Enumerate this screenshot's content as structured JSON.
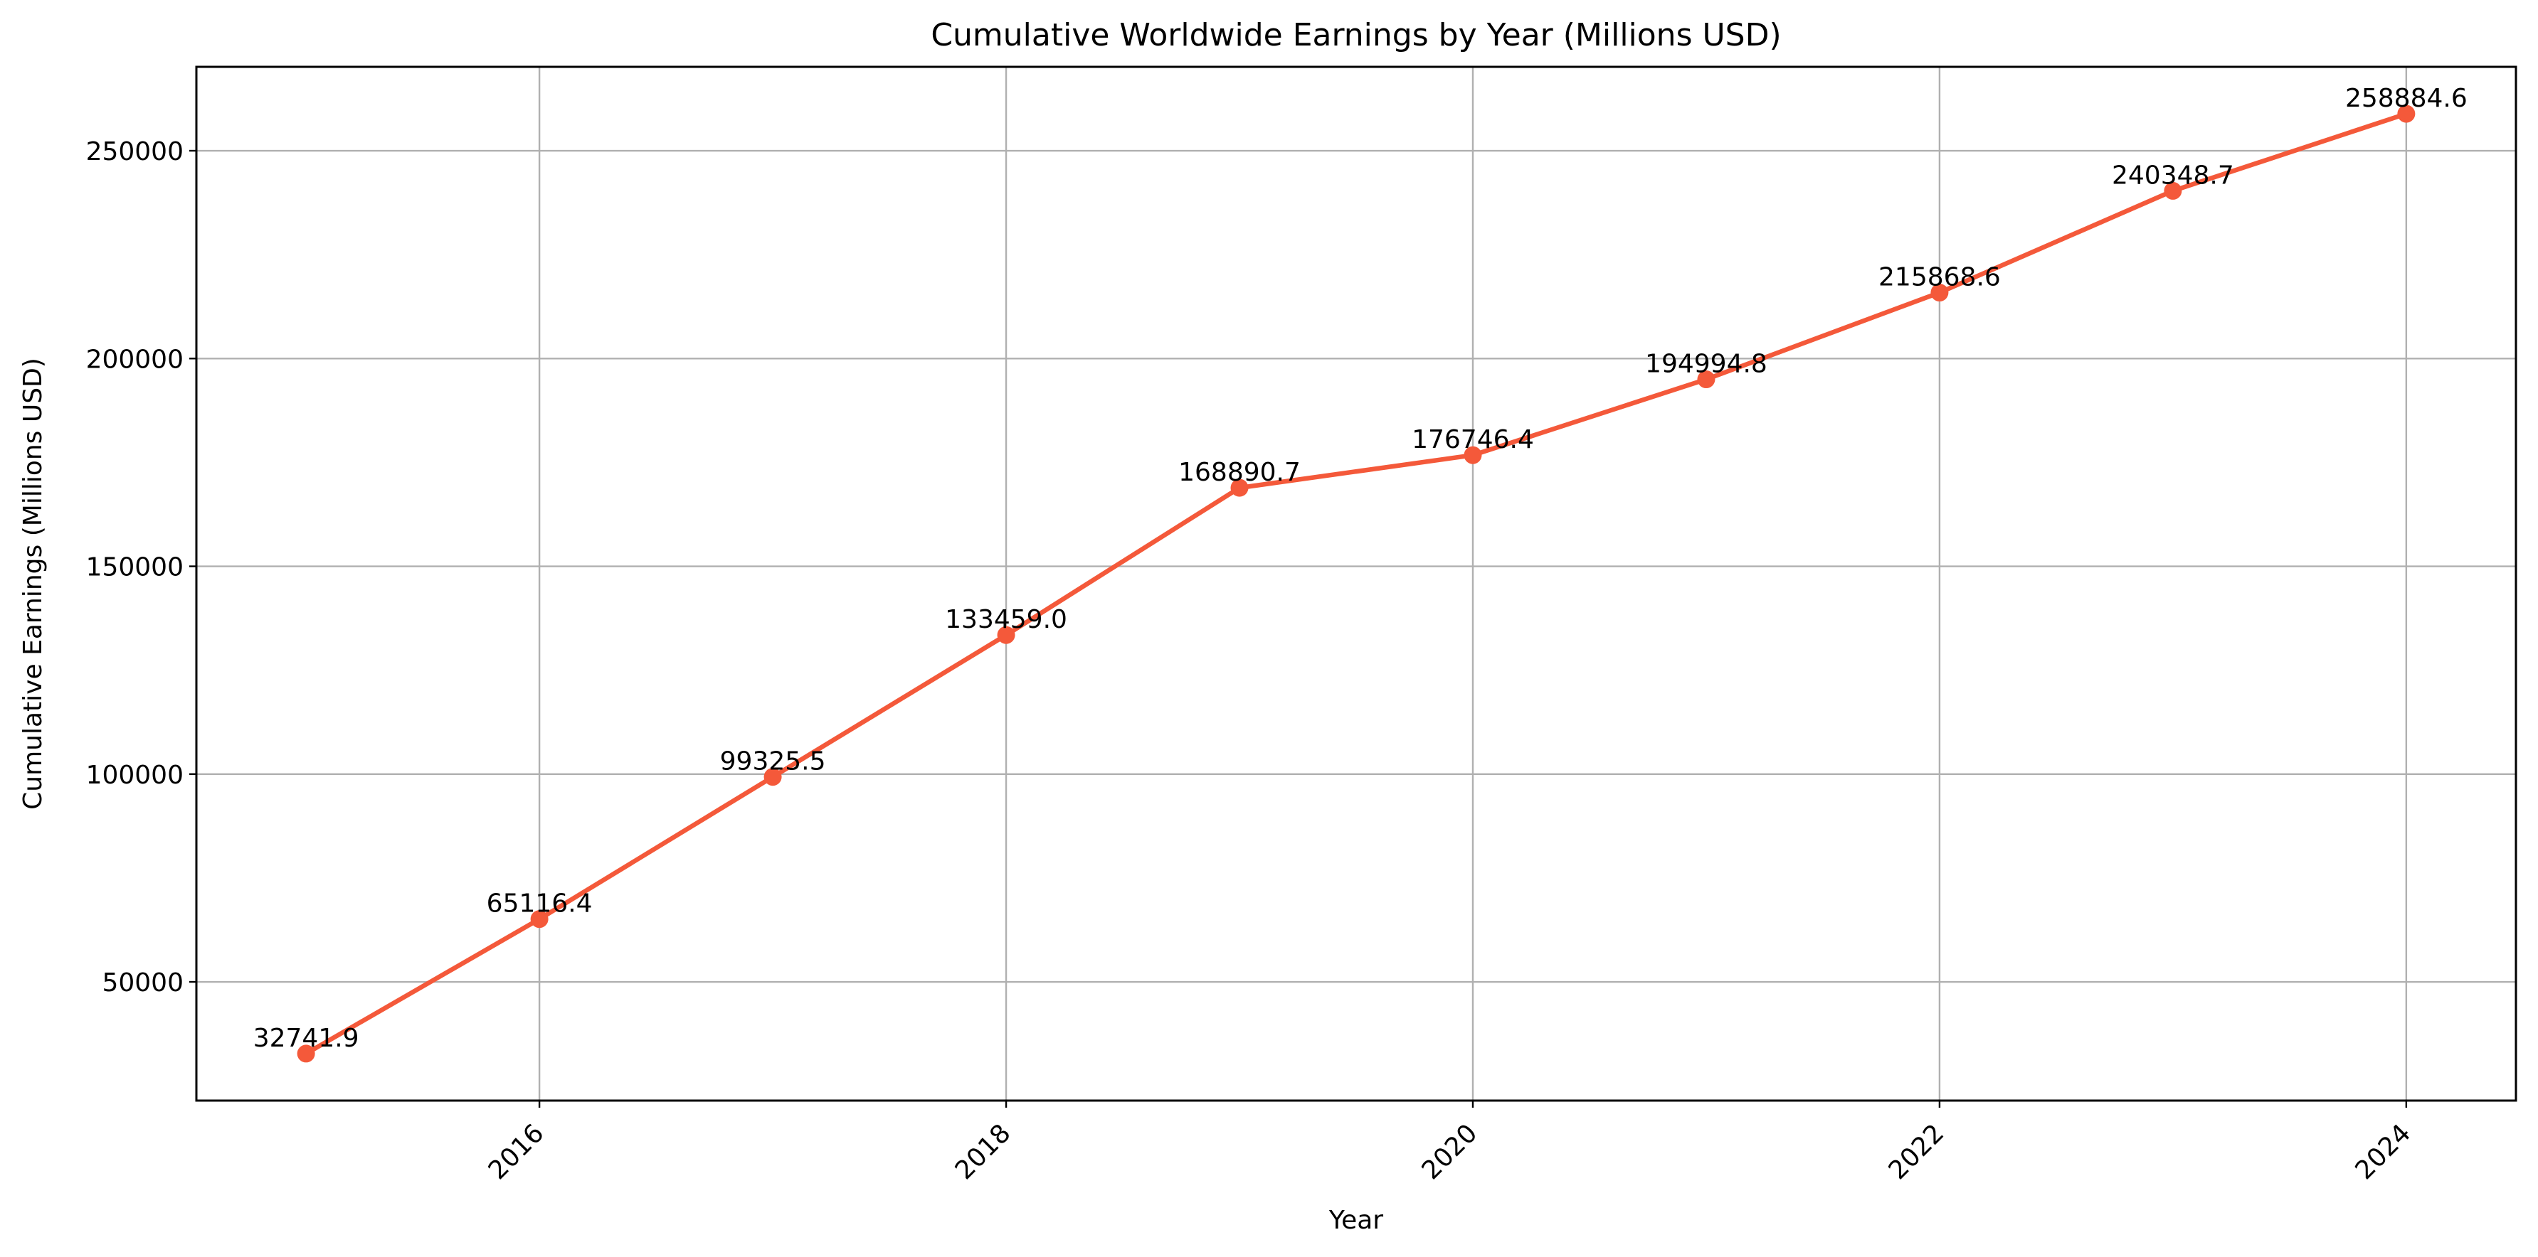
{
  "chart_data": {
    "type": "line",
    "title": "Cumulative Worldwide Earnings by Year (Millions USD)",
    "xlabel": "Year",
    "ylabel": "Cumulative Earnings (Millions USD)",
    "x": [
      2015,
      2016,
      2017,
      2018,
      2019,
      2020,
      2021,
      2022,
      2023,
      2024
    ],
    "series": [
      {
        "values": [
          32741.9,
          65116.4,
          99325.5,
          133459.0,
          168890.7,
          176746.4,
          194994.8,
          215868.6,
          240348.7,
          258884.6
        ],
        "labels": [
          "32741.9",
          "65116.4",
          "99325.5",
          "133459.0",
          "168890.7",
          "176746.4",
          "194994.8",
          "215868.6",
          "240348.7",
          "258884.6"
        ],
        "color": "#f4593a"
      }
    ],
    "xticks": [
      "2016",
      "2018",
      "2020",
      "2022",
      "2024"
    ],
    "yticks": [
      "50000",
      "100000",
      "150000",
      "200000",
      "250000"
    ],
    "xlim": [
      2014.53,
      2024.47
    ],
    "ylim": [
      21435,
      270191
    ],
    "grid": true,
    "legend": "none"
  }
}
